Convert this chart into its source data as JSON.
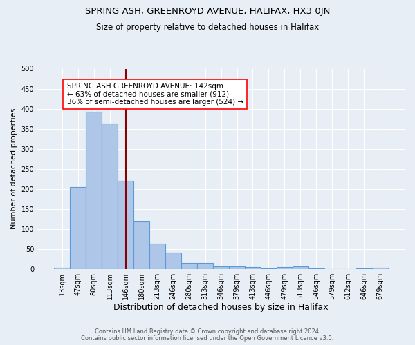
{
  "title1": "SPRING ASH, GREENROYD AVENUE, HALIFAX, HX3 0JN",
  "title2": "Size of property relative to detached houses in Halifax",
  "xlabel": "Distribution of detached houses by size in Halifax",
  "ylabel": "Number of detached properties",
  "footer1": "Contains HM Land Registry data © Crown copyright and database right 2024.",
  "footer2": "Contains public sector information licensed under the Open Government Licence v3.0.",
  "bar_labels": [
    "13sqm",
    "47sqm",
    "80sqm",
    "113sqm",
    "146sqm",
    "180sqm",
    "213sqm",
    "246sqm",
    "280sqm",
    "313sqm",
    "346sqm",
    "379sqm",
    "413sqm",
    "446sqm",
    "479sqm",
    "513sqm",
    "546sqm",
    "579sqm",
    "612sqm",
    "646sqm",
    "679sqm"
  ],
  "bar_values": [
    3,
    205,
    393,
    363,
    220,
    119,
    63,
    41,
    15,
    15,
    6,
    6,
    5,
    1,
    5,
    6,
    1,
    0,
    0,
    1,
    3
  ],
  "bar_color": "#aec6e8",
  "bar_edgecolor": "#5b9bd5",
  "bar_linewidth": 0.8,
  "bg_color": "#e8eef5",
  "vline_x": 4.0,
  "vline_color": "#8b0000",
  "vline_linewidth": 1.5,
  "annotation_text": "SPRING ASH GREENROYD AVENUE: 142sqm\n← 63% of detached houses are smaller (912)\n36% of semi-detached houses are larger (524) →",
  "annotation_box_color": "white",
  "annotation_box_edgecolor": "red",
  "ylim": [
    0,
    500
  ],
  "yticks": [
    0,
    50,
    100,
    150,
    200,
    250,
    300,
    350,
    400,
    450,
    500
  ],
  "title1_fontsize": 9.5,
  "title2_fontsize": 8.5,
  "xlabel_fontsize": 9,
  "ylabel_fontsize": 8,
  "tick_fontsize": 7,
  "annotation_fontsize": 7.5,
  "footer_fontsize": 6
}
